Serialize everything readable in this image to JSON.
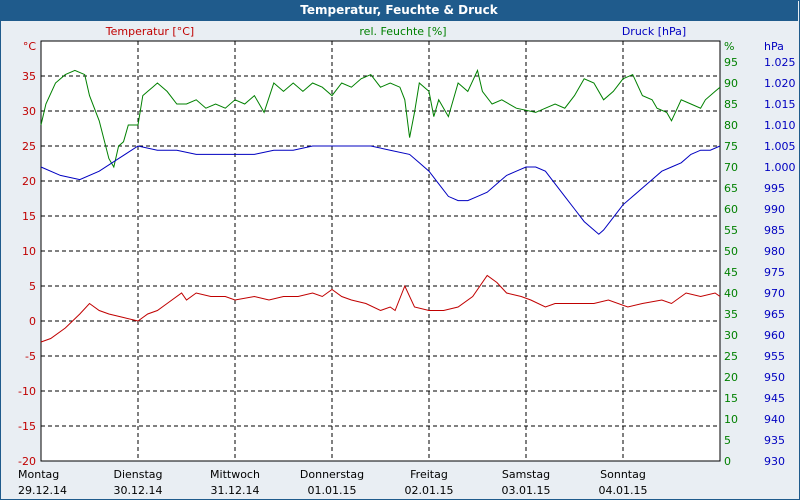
{
  "title": "Temperatur, Feuchte & Druck",
  "colors": {
    "temperature": "#c00000",
    "humidity": "#008000",
    "pressure": "#0000c0",
    "titlebar": "#1f5b8c",
    "background": "#e9eef3"
  },
  "axes": {
    "temp": {
      "unit": "°C",
      "label": "Temperatur [°C]",
      "min": -20,
      "max": 40,
      "ticks": [
        "35",
        "30",
        "25",
        "20",
        "15",
        "10",
        "5",
        "0",
        "-5",
        "-10",
        "-15",
        "-20"
      ]
    },
    "hum": {
      "unit": "%",
      "label": "rel. Feuchte [%]",
      "min": 0,
      "max": 100,
      "ticks": [
        "95",
        "90",
        "85",
        "80",
        "75",
        "70",
        "65",
        "60",
        "55",
        "50",
        "45",
        "40",
        "35",
        "30",
        "25",
        "20",
        "15",
        "10",
        "5",
        "0"
      ]
    },
    "pres": {
      "unit": "hPa",
      "label": "Druck [hPa]",
      "min": 930,
      "max": 1030,
      "ticks": [
        "1.025",
        "1.020",
        "1.015",
        "1.010",
        "1.005",
        "1.000",
        "995",
        "990",
        "985",
        "980",
        "975",
        "970",
        "965",
        "960",
        "955",
        "950",
        "945",
        "940",
        "935",
        "930"
      ]
    }
  },
  "days": [
    {
      "name": "Montag",
      "date": "29.12.14"
    },
    {
      "name": "Dienstag",
      "date": "30.12.14"
    },
    {
      "name": "Mittwoch",
      "date": "31.12.14"
    },
    {
      "name": "Donnerstag",
      "date": "01.01.15"
    },
    {
      "name": "Freitag",
      "date": "02.01.15"
    },
    {
      "name": "Samstag",
      "date": "03.01.15"
    },
    {
      "name": "Sonntag",
      "date": "04.01.15"
    }
  ],
  "chart_data": {
    "type": "line",
    "title": "Temperatur, Feuchte & Druck",
    "x_unit": "days since 29.12.14 00:00",
    "xlim": [
      0,
      7
    ],
    "grid": true,
    "series": [
      {
        "name": "Temperatur [°C]",
        "axis": "temp",
        "points": [
          [
            0,
            -3
          ],
          [
            0.1,
            -2.5
          ],
          [
            0.25,
            -1
          ],
          [
            0.4,
            1
          ],
          [
            0.5,
            2.5
          ],
          [
            0.6,
            1.5
          ],
          [
            0.7,
            1
          ],
          [
            0.85,
            0.5
          ],
          [
            1.0,
            0
          ],
          [
            1.1,
            1
          ],
          [
            1.2,
            1.5
          ],
          [
            1.3,
            2.5
          ],
          [
            1.45,
            4
          ],
          [
            1.5,
            3
          ],
          [
            1.6,
            4
          ],
          [
            1.75,
            3.5
          ],
          [
            1.9,
            3.5
          ],
          [
            2.0,
            3
          ],
          [
            2.2,
            3.5
          ],
          [
            2.35,
            3
          ],
          [
            2.5,
            3.5
          ],
          [
            2.65,
            3.5
          ],
          [
            2.8,
            4
          ],
          [
            2.9,
            3.5
          ],
          [
            3.0,
            4.5
          ],
          [
            3.1,
            3.5
          ],
          [
            3.2,
            3
          ],
          [
            3.35,
            2.5
          ],
          [
            3.5,
            1.5
          ],
          [
            3.6,
            2
          ],
          [
            3.65,
            1.5
          ],
          [
            3.75,
            5
          ],
          [
            3.85,
            2
          ],
          [
            4.0,
            1.5
          ],
          [
            4.15,
            1.5
          ],
          [
            4.3,
            2
          ],
          [
            4.45,
            3.5
          ],
          [
            4.6,
            6.5
          ],
          [
            4.7,
            5.5
          ],
          [
            4.8,
            4
          ],
          [
            4.95,
            3.5
          ],
          [
            5.05,
            3
          ],
          [
            5.2,
            2
          ],
          [
            5.3,
            2.5
          ],
          [
            5.5,
            2.5
          ],
          [
            5.7,
            2.5
          ],
          [
            5.85,
            3
          ],
          [
            6.05,
            2
          ],
          [
            6.2,
            2.5
          ],
          [
            6.4,
            3
          ],
          [
            6.5,
            2.5
          ],
          [
            6.65,
            4
          ],
          [
            6.8,
            3.5
          ],
          [
            6.95,
            4
          ],
          [
            7.0,
            3.5
          ]
        ]
      },
      {
        "name": "rel. Feuchte [%]",
        "axis": "hum",
        "points": [
          [
            0,
            80
          ],
          [
            0.05,
            85
          ],
          [
            0.15,
            90
          ],
          [
            0.25,
            92
          ],
          [
            0.35,
            93
          ],
          [
            0.45,
            92
          ],
          [
            0.5,
            87
          ],
          [
            0.6,
            81
          ],
          [
            0.7,
            72
          ],
          [
            0.75,
            70
          ],
          [
            0.8,
            75
          ],
          [
            0.85,
            76
          ],
          [
            0.9,
            80
          ],
          [
            0.95,
            80
          ],
          [
            1.0,
            80
          ],
          [
            1.05,
            87
          ],
          [
            1.1,
            88
          ],
          [
            1.15,
            89
          ],
          [
            1.2,
            90
          ],
          [
            1.3,
            88
          ],
          [
            1.4,
            85
          ],
          [
            1.5,
            85
          ],
          [
            1.6,
            86
          ],
          [
            1.7,
            84
          ],
          [
            1.8,
            85
          ],
          [
            1.9,
            84
          ],
          [
            2.0,
            86
          ],
          [
            2.1,
            85
          ],
          [
            2.2,
            87
          ],
          [
            2.3,
            83
          ],
          [
            2.4,
            90
          ],
          [
            2.5,
            88
          ],
          [
            2.6,
            90
          ],
          [
            2.7,
            88
          ],
          [
            2.8,
            90
          ],
          [
            2.9,
            89
          ],
          [
            3.0,
            87
          ],
          [
            3.1,
            90
          ],
          [
            3.2,
            89
          ],
          [
            3.3,
            91
          ],
          [
            3.4,
            92
          ],
          [
            3.5,
            89
          ],
          [
            3.6,
            90
          ],
          [
            3.7,
            89
          ],
          [
            3.75,
            86
          ],
          [
            3.8,
            77
          ],
          [
            3.85,
            83
          ],
          [
            3.9,
            90
          ],
          [
            4.0,
            88
          ],
          [
            4.05,
            82
          ],
          [
            4.1,
            86
          ],
          [
            4.2,
            82
          ],
          [
            4.3,
            90
          ],
          [
            4.4,
            88
          ],
          [
            4.5,
            93
          ],
          [
            4.55,
            88
          ],
          [
            4.65,
            85
          ],
          [
            4.75,
            86
          ],
          [
            4.9,
            84
          ],
          [
            5.1,
            83
          ],
          [
            5.2,
            84
          ],
          [
            5.3,
            85
          ],
          [
            5.4,
            84
          ],
          [
            5.5,
            87
          ],
          [
            5.6,
            91
          ],
          [
            5.7,
            90
          ],
          [
            5.8,
            86
          ],
          [
            5.9,
            88
          ],
          [
            6.0,
            91
          ],
          [
            6.1,
            92
          ],
          [
            6.2,
            87
          ],
          [
            6.3,
            86
          ],
          [
            6.35,
            84
          ],
          [
            6.45,
            83
          ],
          [
            6.5,
            81
          ],
          [
            6.6,
            86
          ],
          [
            6.7,
            85
          ],
          [
            6.8,
            84
          ],
          [
            6.85,
            86
          ],
          [
            6.95,
            88
          ],
          [
            7.0,
            89
          ]
        ]
      },
      {
        "name": "Druck [hPa]",
        "axis": "pres",
        "points": [
          [
            0,
            1000
          ],
          [
            0.2,
            998
          ],
          [
            0.4,
            997
          ],
          [
            0.6,
            999
          ],
          [
            0.8,
            1002
          ],
          [
            1.0,
            1005
          ],
          [
            1.2,
            1004
          ],
          [
            1.4,
            1004
          ],
          [
            1.6,
            1003
          ],
          [
            1.8,
            1003
          ],
          [
            2.0,
            1003
          ],
          [
            2.2,
            1003
          ],
          [
            2.4,
            1004
          ],
          [
            2.6,
            1004
          ],
          [
            2.8,
            1005
          ],
          [
            3.0,
            1005
          ],
          [
            3.2,
            1005
          ],
          [
            3.4,
            1005
          ],
          [
            3.6,
            1004
          ],
          [
            3.8,
            1003
          ],
          [
            3.9,
            1001
          ],
          [
            4.0,
            999
          ],
          [
            4.1,
            996
          ],
          [
            4.2,
            993
          ],
          [
            4.3,
            992
          ],
          [
            4.4,
            992
          ],
          [
            4.5,
            993
          ],
          [
            4.6,
            994
          ],
          [
            4.7,
            996
          ],
          [
            4.8,
            998
          ],
          [
            4.9,
            999
          ],
          [
            5.0,
            1000
          ],
          [
            5.1,
            1000
          ],
          [
            5.2,
            999
          ],
          [
            5.3,
            996
          ],
          [
            5.4,
            993
          ],
          [
            5.5,
            990
          ],
          [
            5.6,
            987
          ],
          [
            5.7,
            985
          ],
          [
            5.75,
            984
          ],
          [
            5.8,
            985
          ],
          [
            5.9,
            988
          ],
          [
            6.0,
            991
          ],
          [
            6.1,
            993
          ],
          [
            6.2,
            995
          ],
          [
            6.3,
            997
          ],
          [
            6.4,
            999
          ],
          [
            6.5,
            1000
          ],
          [
            6.6,
            1001
          ],
          [
            6.7,
            1003
          ],
          [
            6.8,
            1004
          ],
          [
            6.9,
            1004
          ],
          [
            7.0,
            1005
          ]
        ]
      }
    ]
  }
}
